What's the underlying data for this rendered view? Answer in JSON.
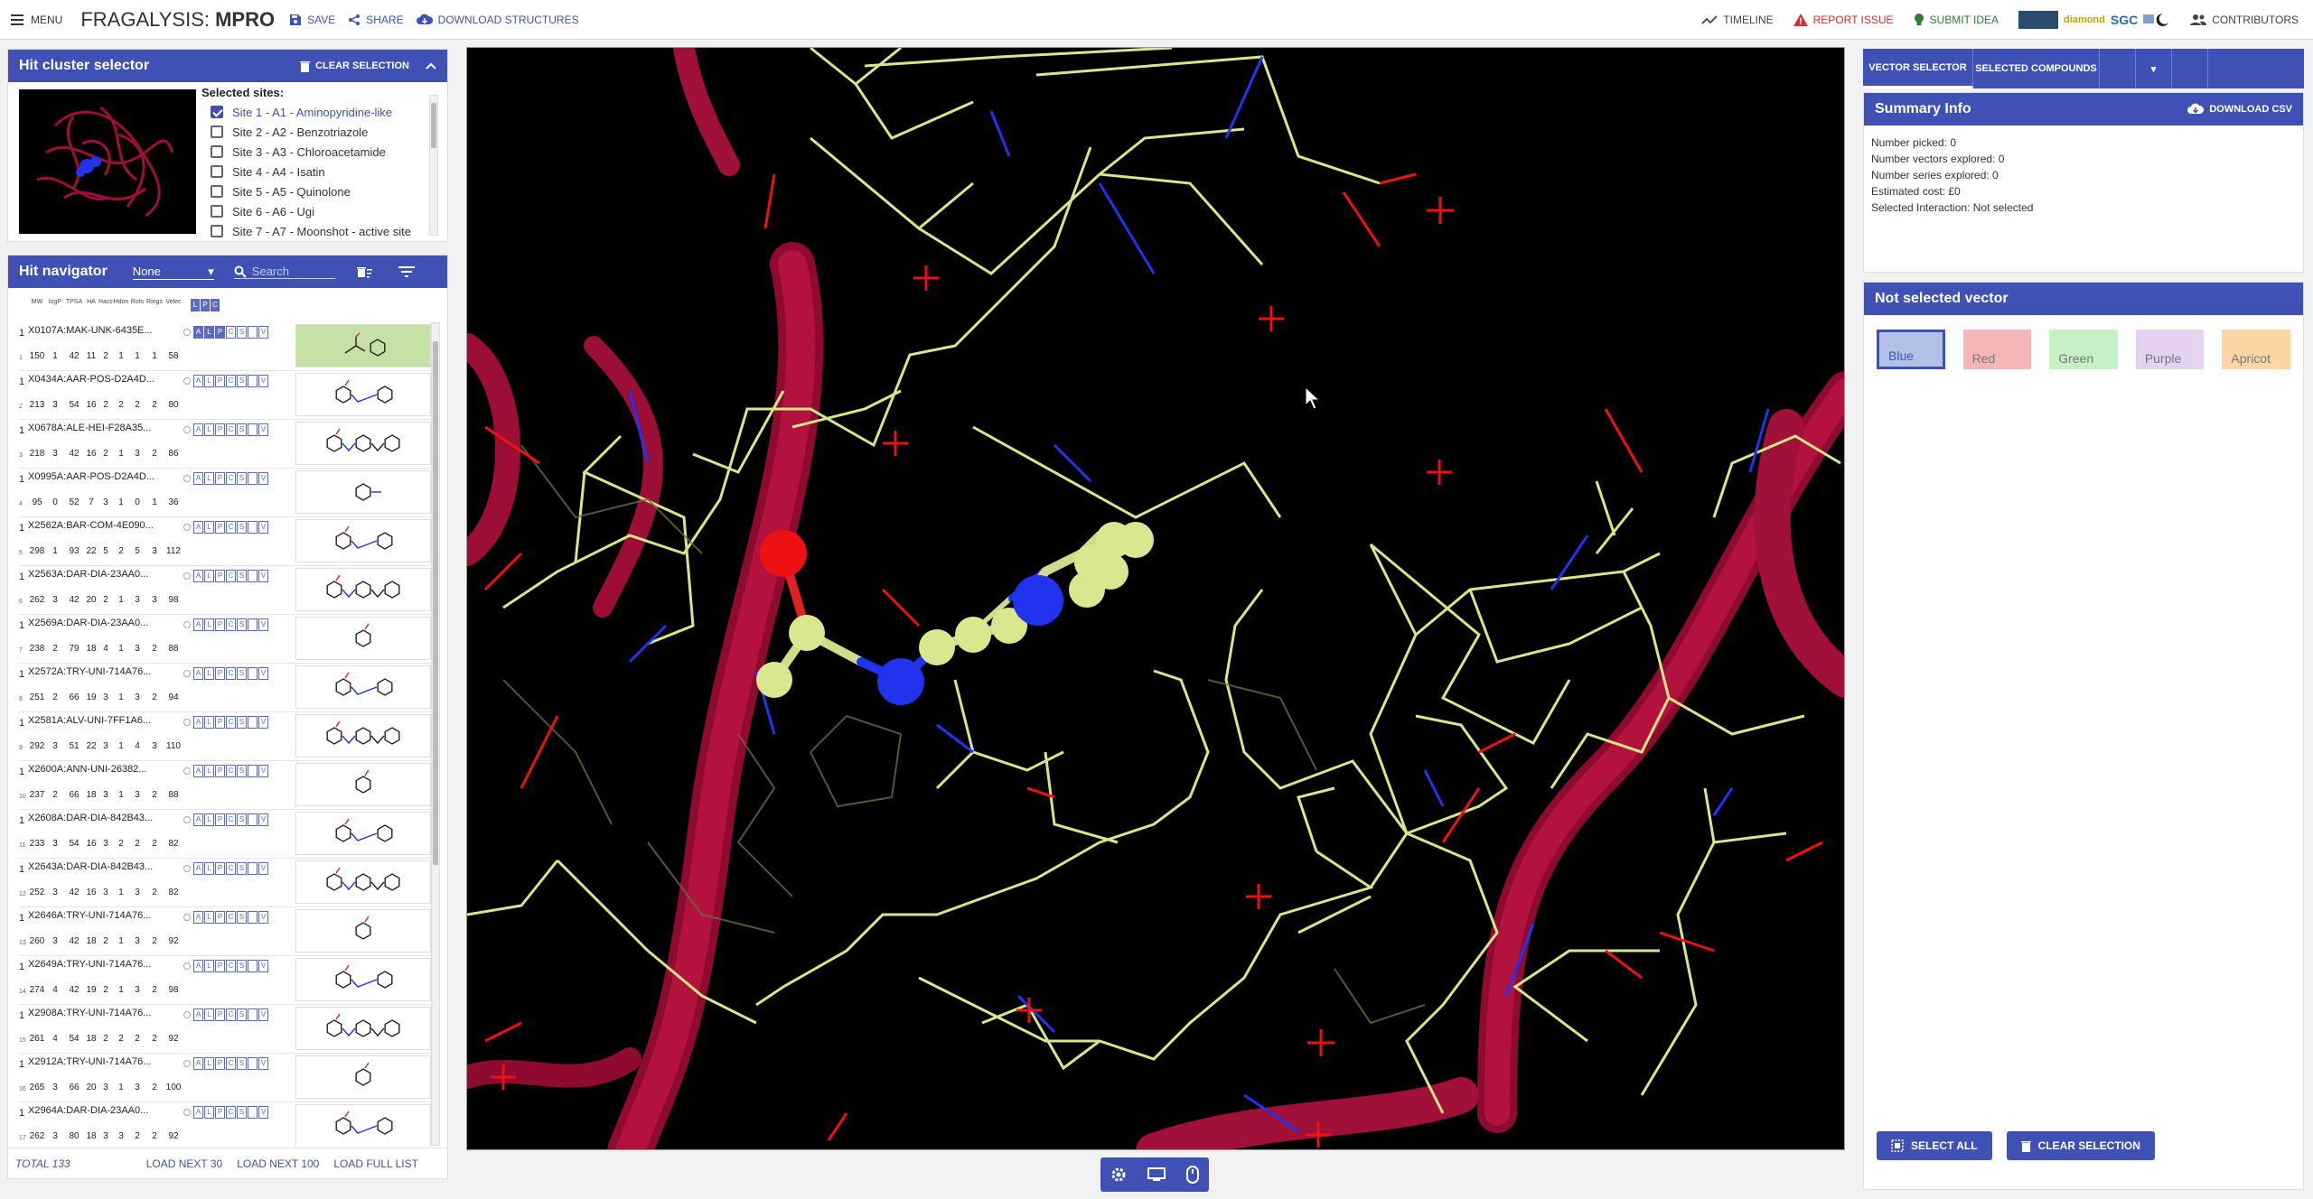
{
  "topbar": {
    "menu": "MENU",
    "brand_prefix": "FRAGALYSIS:",
    "brand_target": "MPRO",
    "save": "SAVE",
    "share": "SHARE",
    "download": "DOWNLOAD STRUCTURES",
    "timeline": "TIMELINE",
    "report_issue": "REPORT ISSUE",
    "submit_idea": "SUBMIT IDEA",
    "logo_diamond": "diamond",
    "logo_sgc": "SGC",
    "contributors": "CONTRIBUTORS"
  },
  "cluster": {
    "title": "Hit cluster selector",
    "clear": "CLEAR SELECTION",
    "sites_label": "Selected sites:",
    "sites": [
      {
        "label": "Site 1 - A1 - Aminopyridine-like",
        "checked": true
      },
      {
        "label": "Site 2 - A2 - Benzotriazole",
        "checked": false
      },
      {
        "label": "Site 3 - A3 - Chloroacetamide",
        "checked": false
      },
      {
        "label": "Site 4 - A4 - Isatin",
        "checked": false
      },
      {
        "label": "Site 5 - A5 - Quinolone",
        "checked": false
      },
      {
        "label": "Site 6 - A6 - Ugi",
        "checked": false
      },
      {
        "label": "Site 7 - A7 - Moonshot - active site",
        "checked": false
      }
    ]
  },
  "nav": {
    "title": "Hit navigator",
    "filter_value": "None",
    "search_placeholder": "Search",
    "columns": [
      "MW",
      "logP",
      "TPSA",
      "HA",
      "Hacc",
      "Hdon",
      "Rots",
      "Rings",
      "Velec"
    ],
    "lpc": [
      "L",
      "P",
      "C"
    ],
    "rows": [
      {
        "n": "1",
        "i": "1",
        "name": "X0107A:MAK-UNK-6435E...",
        "v": [
          "150",
          "1",
          "42",
          "11",
          "2",
          "1",
          "1",
          "1",
          "58"
        ],
        "sel": true
      },
      {
        "n": "1",
        "i": "2",
        "name": "X0434A:AAR-POS-D2A4D...",
        "v": [
          "213",
          "3",
          "54",
          "16",
          "2",
          "2",
          "2",
          "2",
          "80"
        ]
      },
      {
        "n": "1",
        "i": "3",
        "name": "X0678A:ALE-HEI-F28A35...",
        "v": [
          "218",
          "3",
          "42",
          "16",
          "2",
          "1",
          "3",
          "2",
          "86"
        ]
      },
      {
        "n": "1",
        "i": "4",
        "name": "X0995A:AAR-POS-D2A4D...",
        "v": [
          "95",
          "0",
          "52",
          "7",
          "3",
          "1",
          "0",
          "1",
          "36"
        ]
      },
      {
        "n": "1",
        "i": "5",
        "name": "X2562A:BAR-COM-4E090...",
        "v": [
          "298",
          "1",
          "93",
          "22",
          "5",
          "2",
          "5",
          "3",
          "112"
        ]
      },
      {
        "n": "1",
        "i": "6",
        "name": "X2563A:DAR-DIA-23AA0...",
        "v": [
          "262",
          "3",
          "42",
          "20",
          "2",
          "1",
          "3",
          "3",
          "98"
        ]
      },
      {
        "n": "1",
        "i": "7",
        "name": "X2569A:DAR-DIA-23AA0...",
        "v": [
          "238",
          "2",
          "79",
          "18",
          "4",
          "1",
          "3",
          "2",
          "88"
        ]
      },
      {
        "n": "1",
        "i": "8",
        "name": "X2572A:TRY-UNI-714A76...",
        "v": [
          "251",
          "2",
          "66",
          "19",
          "3",
          "1",
          "3",
          "2",
          "94"
        ]
      },
      {
        "n": "1",
        "i": "9",
        "name": "X2581A:ALV-UNI-7FF1A6...",
        "v": [
          "292",
          "3",
          "51",
          "22",
          "3",
          "1",
          "4",
          "3",
          "110"
        ]
      },
      {
        "n": "1",
        "i": "10",
        "name": "X2600A:ANN-UNI-26382...",
        "v": [
          "237",
          "2",
          "66",
          "18",
          "3",
          "1",
          "3",
          "2",
          "88"
        ]
      },
      {
        "n": "1",
        "i": "11",
        "name": "X2608A:DAR-DIA-842B43...",
        "v": [
          "233",
          "3",
          "54",
          "16",
          "3",
          "2",
          "2",
          "2",
          "82"
        ]
      },
      {
        "n": "1",
        "i": "12",
        "name": "X2643A:DAR-DIA-842B43...",
        "v": [
          "252",
          "3",
          "42",
          "16",
          "3",
          "1",
          "3",
          "2",
          "82"
        ]
      },
      {
        "n": "1",
        "i": "13",
        "name": "X2646A:TRY-UNI-714A76...",
        "v": [
          "260",
          "3",
          "42",
          "18",
          "2",
          "1",
          "3",
          "2",
          "92"
        ]
      },
      {
        "n": "1",
        "i": "14",
        "name": "X2649A:TRY-UNI-714A76...",
        "v": [
          "274",
          "4",
          "42",
          "19",
          "2",
          "1",
          "3",
          "2",
          "98"
        ]
      },
      {
        "n": "1",
        "i": "15",
        "name": "X2908A:TRY-UNI-714A76...",
        "v": [
          "261",
          "4",
          "54",
          "18",
          "2",
          "2",
          "2",
          "2",
          "92"
        ]
      },
      {
        "n": "1",
        "i": "16",
        "name": "X2912A:TRY-UNI-714A76...",
        "v": [
          "265",
          "3",
          "66",
          "20",
          "3",
          "1",
          "3",
          "2",
          "100"
        ]
      },
      {
        "n": "1",
        "i": "17",
        "name": "X2964A:DAR-DIA-23AA0...",
        "v": [
          "262",
          "3",
          "80",
          "18",
          "3",
          "3",
          "2",
          "2",
          "92"
        ]
      }
    ],
    "total": "TOTAL 133",
    "load_30": "LOAD NEXT 30",
    "load_100": "LOAD NEXT 100",
    "load_full": "LOAD FULL LIST"
  },
  "right": {
    "tab_vector": "VECTOR SELECTOR",
    "tab_compounds": "SELECTED COMPOUNDS",
    "summary_title": "Summary Info",
    "download_csv": "DOWNLOAD CSV",
    "summary_lines": [
      "Number picked: 0",
      "Number vectors explored: 0",
      "Number series explored: 0",
      "Estimated cost: £0",
      "Selected Interaction: Not selected"
    ],
    "vector_title": "Not selected vector",
    "swatches": [
      "Blue",
      "Red",
      "Green",
      "Purple",
      "Apricot"
    ],
    "select_all": "SELECT ALL",
    "clear_selection": "CLEAR SELECTION"
  },
  "colors": {
    "primary": "#3f51b5",
    "ribbon": "#b0103c",
    "carbon": "#d7e68a",
    "nitrogen": "#2233ee",
    "oxygen": "#ee1111"
  }
}
